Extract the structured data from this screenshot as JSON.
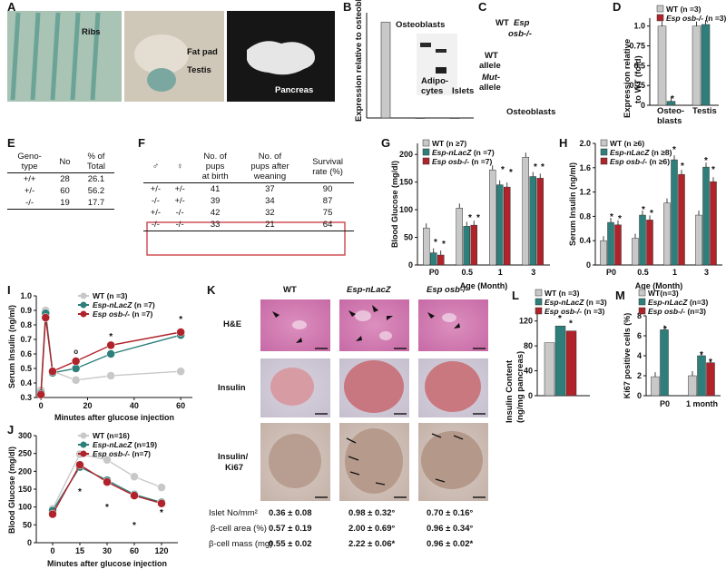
{
  "panel_labels": [
    "A",
    "B",
    "C",
    "D",
    "E",
    "F",
    "G",
    "H",
    "I",
    "J",
    "K",
    "L",
    "M"
  ],
  "panel_a": {
    "photo_labels": [
      "Ribs",
      "Fat pad",
      "Testis",
      "Pancreas"
    ]
  },
  "panel_b": {
    "ylabel": "Expression relative to osteoblasts (fold)",
    "category_labels": [
      "Osteoblasts",
      "Adipo-",
      "cytes",
      "Islets"
    ]
  },
  "panel_c": {
    "header": [
      "WT",
      "Esp",
      "osb-/-"
    ],
    "lane_labels": [
      "WT",
      "allele",
      "Mut-",
      "allele"
    ],
    "caption": "Osteoblasts"
  },
  "panel_d": {
    "ylabel": [
      "Expression relative",
      "to WT (fold)"
    ],
    "ticks": [
      "0",
      "0.25",
      "0.5",
      "0.75",
      "1.0"
    ],
    "categories": [
      "Osteo-",
      "blasts",
      "Testis"
    ],
    "legend": [
      "WT (n =3)",
      "Esp osb-/- (n =3)"
    ]
  },
  "panel_e": {
    "header": [
      "Geno-",
      "type",
      "No",
      "% of",
      "Total"
    ],
    "rows": [
      [
        "+/+",
        "28",
        "26.1"
      ],
      [
        "+/-",
        "60",
        "56.2"
      ],
      [
        "-/-",
        "19",
        "17.7"
      ]
    ]
  },
  "panel_f": {
    "parents_header": [
      "♂",
      "♀"
    ],
    "col_headers": [
      [
        "No. of",
        "pups",
        "at birth"
      ],
      [
        "No. of",
        "pups after",
        "weaning"
      ],
      [
        "Survival",
        "rate (%)"
      ]
    ],
    "rows": [
      [
        "+/-",
        "+/-",
        "41",
        "37",
        "90"
      ],
      [
        "-/-",
        "+/-",
        "39",
        "34",
        "87"
      ],
      [
        "+/-",
        "-/-",
        "42",
        "32",
        "75"
      ],
      [
        "-/-",
        "-/-",
        "33",
        "21",
        "64"
      ]
    ]
  },
  "panel_g": {
    "ylabel": "Blood Glucose (mg/dl)",
    "xlabel": "Age (Month)",
    "ticks": [
      "0",
      "50",
      "100",
      "150",
      "200"
    ],
    "categories": [
      "P0",
      "0.5",
      "1",
      "3"
    ],
    "legend": [
      "WT (n ≥7)",
      "Esp-nLacZ (n =7)",
      "Esp osb-/- (n =7)"
    ]
  },
  "panel_h": {
    "ylabel": "Serum Insulin (ng/ml)",
    "xlabel": "Age (Month)",
    "ticks": [
      "0",
      "0.4",
      "0.8",
      "1.2",
      "1.6",
      "2.0"
    ],
    "categories": [
      "P0",
      "0.5",
      "1",
      "3"
    ],
    "legend": [
      "WT (n ≥6)",
      "Esp-nLacZ (n ≥8)",
      "Esp osb-/- (n ≥6)"
    ]
  },
  "panel_i": {
    "ylabel": "Serum Insulin (ng/ml)",
    "xlabel": "Minutes after glucose injection",
    "ticks": [
      "0.3",
      "0.4",
      "0.5",
      "0.6",
      "0.7",
      "0.8",
      "0.9",
      "1.0"
    ],
    "xticks": [
      "0",
      "20",
      "40",
      "60"
    ],
    "legend": [
      "WT (n =3)",
      "Esp-nLacZ (n =7)",
      "Esp osb-/- (n =7)"
    ]
  },
  "panel_j": {
    "ylabel": "Blood Glucose (mg/dl)",
    "xlabel": "Minutes after glucose injection",
    "ticks": [
      "0",
      "50",
      "100",
      "150",
      "200",
      "250",
      "300"
    ],
    "xticks": [
      "0",
      "15",
      "30",
      "60",
      "120"
    ],
    "legend": [
      "WT (n=16)",
      "Esp-nLacZ (n=19)",
      "Esp osb-/- (n=7)"
    ]
  },
  "panel_k": {
    "columns": [
      "WT",
      "Esp-nLacZ",
      "Esp osb-/-"
    ],
    "rows": [
      "H&E",
      "Insulin",
      "Insulin/",
      "Ki67"
    ],
    "stats": [
      {
        "label": "Islet No/mm²",
        "values": [
          "0.36 ± 0.08",
          "0.98 ± 0.32°",
          "0.70 ± 0.16°"
        ]
      },
      {
        "label": "β-cell area (%)",
        "values": [
          "0.57 ± 0.19",
          "2.00 ± 0.69°",
          "0.96 ± 0.34°"
        ]
      },
      {
        "label": "β-cell mass (mg)",
        "values": [
          "0.55 ± 0.02",
          "2.22 ± 0.06*",
          "0.96 ± 0.02*"
        ]
      }
    ]
  },
  "panel_l": {
    "ylabel": [
      "Insulin Content",
      "(ng/mg pancreas)"
    ],
    "ticks": [
      "0",
      "40",
      "80",
      "120"
    ],
    "legend": [
      "WT (n =3)",
      "Esp-nLacZ (n =3)",
      "Esp osb-/- (n =3)"
    ]
  },
  "panel_m": {
    "ylabel": "Ki67 positive cells (%)",
    "ticks": [
      "0",
      "2",
      "4",
      "6",
      "8"
    ],
    "categories": [
      "P0",
      "1 month"
    ],
    "legend": [
      "WT(n=3)",
      "Esp-nLacZ (n=3)",
      "Esp osb-/- (n=3)"
    ]
  },
  "colors": {
    "wt": "#c8c8c8",
    "lacz": "#2e7f7b",
    "osb": "#b0232a",
    "box": "#c8363b"
  },
  "chart_data": [
    {
      "panel": "B",
      "type": "bar",
      "categories": [
        "Osteoblasts",
        "Adipocytes",
        "Islets"
      ],
      "values": [
        100,
        0,
        0
      ]
    },
    {
      "panel": "D",
      "type": "bar",
      "categories": [
        "Osteoblasts",
        "Testis"
      ],
      "series": [
        {
          "name": "WT",
          "values": [
            1.0,
            1.0
          ]
        },
        {
          "name": "Esp osb-/-",
          "values": [
            0.05,
            1.02
          ]
        }
      ],
      "ylim": [
        0,
        1.1
      ]
    },
    {
      "panel": "G",
      "type": "bar",
      "categories": [
        "P0",
        "0.5",
        "1",
        "3"
      ],
      "series": [
        {
          "name": "WT",
          "values": [
            67,
            103,
            172,
            195
          ]
        },
        {
          "name": "Esp-nLacZ",
          "values": [
            22,
            70,
            145,
            160
          ]
        },
        {
          "name": "Esp osb-/-",
          "values": [
            18,
            72,
            141,
            157
          ]
        }
      ],
      "ylim": [
        0,
        220
      ]
    },
    {
      "panel": "H",
      "type": "bar",
      "categories": [
        "P0",
        "0.5",
        "1",
        "3"
      ],
      "series": [
        {
          "name": "WT",
          "values": [
            0.4,
            0.44,
            1.02,
            0.82
          ]
        },
        {
          "name": "Esp-nLacZ",
          "values": [
            0.7,
            0.82,
            1.73,
            1.61
          ]
        },
        {
          "name": "Esp osb-/-",
          "values": [
            0.66,
            0.74,
            1.49,
            1.37
          ]
        }
      ],
      "ylim": [
        0,
        2.0
      ]
    },
    {
      "panel": "I",
      "type": "line",
      "x": [
        0,
        2,
        5,
        15,
        30,
        60
      ],
      "series": [
        {
          "name": "WT",
          "values": [
            0.35,
            0.9,
            0.48,
            0.42,
            0.45,
            0.48
          ]
        },
        {
          "name": "Esp-nLacZ",
          "values": [
            0.33,
            0.88,
            0.47,
            0.5,
            0.6,
            0.73
          ]
        },
        {
          "name": "Esp osb-/-",
          "values": [
            0.32,
            0.85,
            0.48,
            0.55,
            0.66,
            0.75
          ]
        }
      ],
      "xlim": [
        -2,
        65
      ],
      "ylim": [
        0.3,
        1.0
      ]
    },
    {
      "panel": "J",
      "type": "line",
      "categories": [
        "0",
        "15",
        "30",
        "60",
        "120"
      ],
      "series": [
        {
          "name": "WT",
          "values": [
            95,
            248,
            232,
            185,
            155
          ]
        },
        {
          "name": "Esp-nLacZ",
          "values": [
            90,
            212,
            175,
            135,
            113
          ]
        },
        {
          "name": "Esp osb-/-",
          "values": [
            80,
            218,
            170,
            132,
            110
          ]
        }
      ],
      "ylim": [
        0,
        300
      ]
    },
    {
      "panel": "L",
      "type": "bar",
      "series": [
        {
          "name": "WT",
          "values": [
            85
          ]
        },
        {
          "name": "Esp-nLacZ",
          "values": [
            112
          ]
        },
        {
          "name": "Esp osb-/-",
          "values": [
            104
          ]
        }
      ],
      "ylim": [
        0,
        140
      ]
    },
    {
      "panel": "M",
      "type": "bar",
      "categories": [
        "P0",
        "1 month"
      ],
      "series": [
        {
          "name": "WT",
          "values": [
            1.9,
            2.0
          ]
        },
        {
          "name": "Esp-nLacZ",
          "values": [
            6.6,
            4.0
          ]
        },
        {
          "name": "Esp osb-/-",
          "values": [
            null,
            3.3
          ]
        }
      ],
      "ylim": [
        0,
        8
      ]
    }
  ]
}
